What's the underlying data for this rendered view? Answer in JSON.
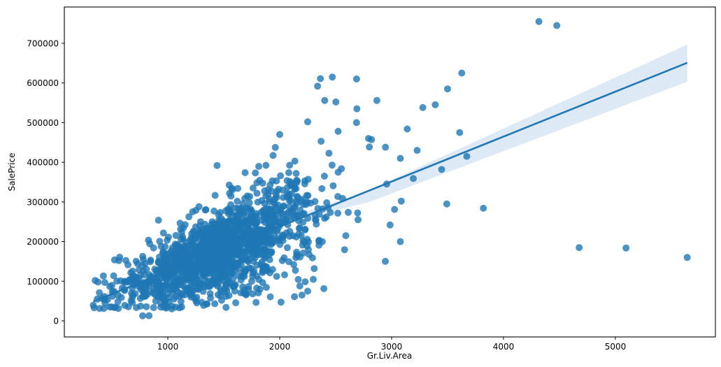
{
  "chart_data": {
    "type": "scatter",
    "title": "",
    "xlabel": "Gr.Liv.Area",
    "ylabel": "SalePrice",
    "xlim": [
      70,
      5900
    ],
    "ylim": [
      -40000,
      790000
    ],
    "xticks": [
      1000,
      2000,
      3000,
      4000,
      5000
    ],
    "yticks": [
      0,
      100000,
      200000,
      300000,
      400000,
      500000,
      600000,
      700000
    ],
    "xtick_labels": [
      "1000",
      "2000",
      "3000",
      "4000",
      "5000"
    ],
    "ytick_labels": [
      "0",
      "100000",
      "200000",
      "300000",
      "400000",
      "500000",
      "600000",
      "700000"
    ],
    "grid": false,
    "legend": null,
    "point_color": "#1f77b4",
    "point_alpha": 0.8,
    "regression": {
      "x_start": 334,
      "y_start": 49000,
      "x_end": 5642,
      "y_end": 651000,
      "ci_start": [
        40000,
        58000
      ],
      "ci_end": [
        603000,
        697000
      ],
      "line_color": "#1f77b4",
      "band_color": "#dde9f4"
    },
    "cluster_description": "Dense cluster of ~2900 houses between 700–2000 sq ft and $80k–$320k",
    "outliers": [
      {
        "x": 4316,
        "y": 755000
      },
      {
        "x": 4476,
        "y": 745000
      },
      {
        "x": 3627,
        "y": 625000
      },
      {
        "x": 2470,
        "y": 615000
      },
      {
        "x": 2364,
        "y": 611000
      },
      {
        "x": 2687,
        "y": 610000
      },
      {
        "x": 2338,
        "y": 592000
      },
      {
        "x": 3500,
        "y": 585000
      },
      {
        "x": 2402,
        "y": 556000
      },
      {
        "x": 2868,
        "y": 556000
      },
      {
        "x": 2502,
        "y": 552000
      },
      {
        "x": 3390,
        "y": 545000
      },
      {
        "x": 3279,
        "y": 538000
      },
      {
        "x": 2690,
        "y": 535000
      },
      {
        "x": 2250,
        "y": 502000
      },
      {
        "x": 2686,
        "y": 500000
      },
      {
        "x": 3140,
        "y": 484000
      },
      {
        "x": 3608,
        "y": 475000
      },
      {
        "x": 2522,
        "y": 478000
      },
      {
        "x": 2000,
        "y": 470000
      },
      {
        "x": 2794,
        "y": 460000
      },
      {
        "x": 2820,
        "y": 457000
      },
      {
        "x": 2370,
        "y": 453000
      },
      {
        "x": 3228,
        "y": 430000
      },
      {
        "x": 3672,
        "y": 415000
      },
      {
        "x": 3078,
        "y": 410000
      },
      {
        "x": 3447,
        "y": 382000
      },
      {
        "x": 2945,
        "y": 438000
      },
      {
        "x": 3194,
        "y": 359000
      },
      {
        "x": 2956,
        "y": 345000
      },
      {
        "x": 3086,
        "y": 302000
      },
      {
        "x": 3493,
        "y": 295000
      },
      {
        "x": 3820,
        "y": 284000
      },
      {
        "x": 3026,
        "y": 281000
      },
      {
        "x": 2986,
        "y": 242000
      },
      {
        "x": 3078,
        "y": 200000
      },
      {
        "x": 2944,
        "y": 150000
      },
      {
        "x": 4676,
        "y": 184750
      },
      {
        "x": 5095,
        "y": 183850
      },
      {
        "x": 5642,
        "y": 160000
      },
      {
        "x": 1440,
        "y": 392000
      },
      {
        "x": 334,
        "y": 39300
      },
      {
        "x": 438,
        "y": 45000
      },
      {
        "x": 480,
        "y": 35000
      },
      {
        "x": 498,
        "y": 35300
      },
      {
        "x": 775,
        "y": 12789
      },
      {
        "x": 832,
        "y": 13100
      },
      {
        "x": 2132,
        "y": 61000
      },
      {
        "x": 2250,
        "y": 75000
      },
      {
        "x": 2700,
        "y": 255000
      }
    ]
  }
}
